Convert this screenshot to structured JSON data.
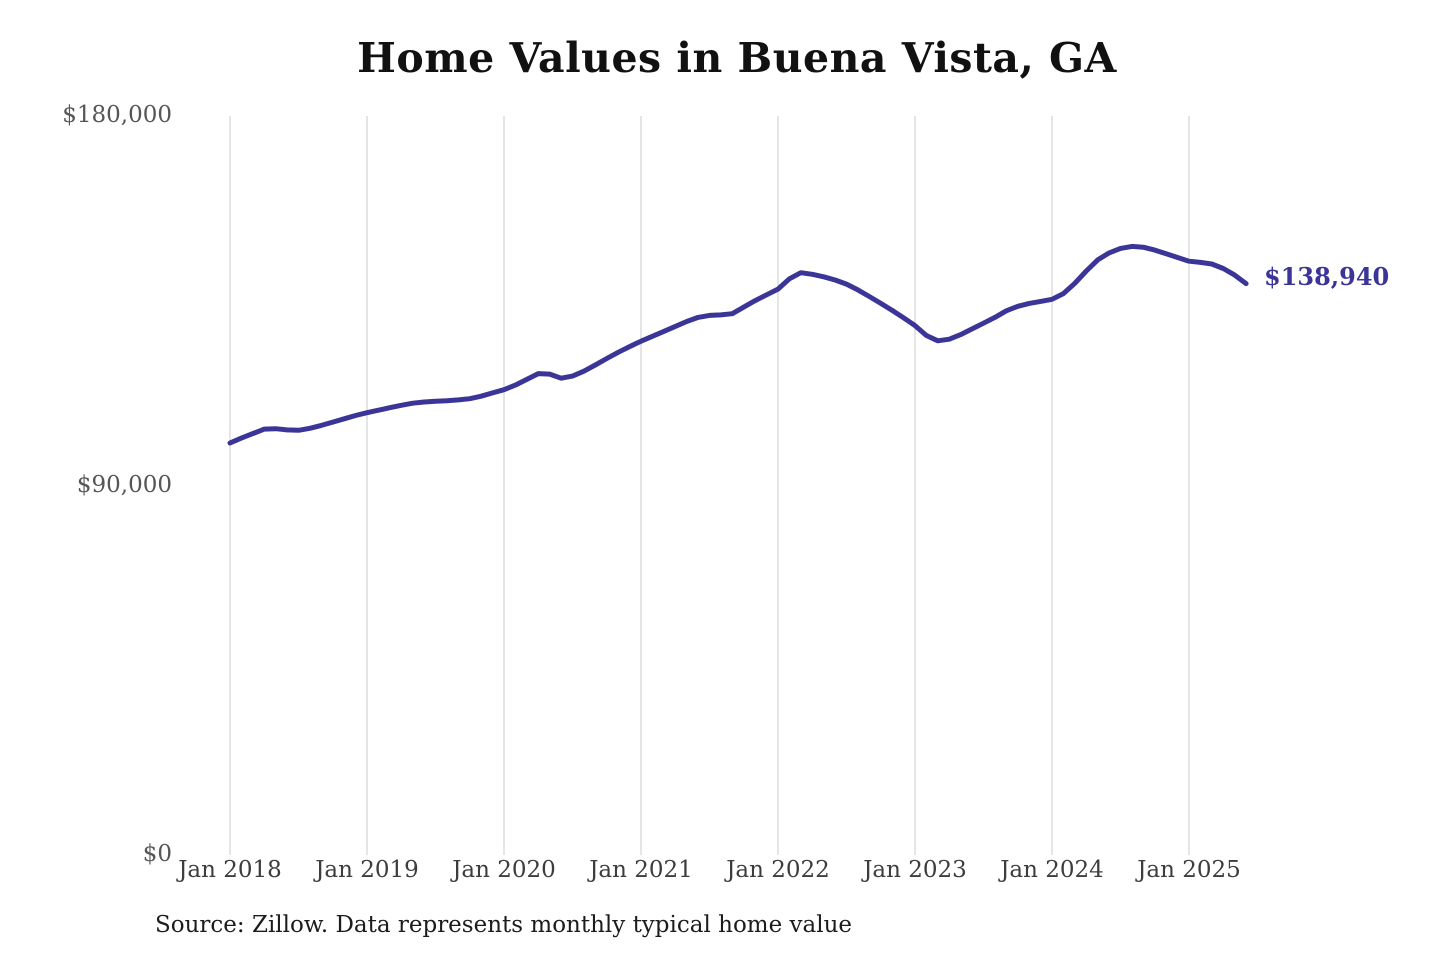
{
  "chart": {
    "line_color": "#3b3598",
    "grid_color": "#cbcbcb",
    "background": "#ffffff"
  },
  "chart_data": {
    "type": "line",
    "title": "Home Values in Buena Vista, GA",
    "xlabel": "",
    "ylabel": "",
    "ylim": [
      0,
      180000
    ],
    "grid": {
      "vertical": true,
      "horizontal": false
    },
    "legend": "none",
    "annotation": {
      "text": "$138,940",
      "value": 138940,
      "position": "line-end"
    },
    "source": "Source: Zillow. Data represents monthly typical home value",
    "yticks": [
      {
        "value": 0,
        "label": "$0"
      },
      {
        "value": 90000,
        "label": "$90,000"
      },
      {
        "value": 180000,
        "label": "$180,000"
      }
    ],
    "xticks": [
      {
        "month_index": 0,
        "label": "Jan 2018"
      },
      {
        "month_index": 12,
        "label": "Jan 2019"
      },
      {
        "month_index": 24,
        "label": "Jan 2020"
      },
      {
        "month_index": 36,
        "label": "Jan 2021"
      },
      {
        "month_index": 48,
        "label": "Jan 2022"
      },
      {
        "month_index": 60,
        "label": "Jan 2023"
      },
      {
        "month_index": 72,
        "label": "Jan 2024"
      },
      {
        "month_index": 84,
        "label": "Jan 2025"
      }
    ],
    "series": [
      {
        "name": "Monthly typical home value",
        "frequency": "monthly",
        "months": [
          "2018-01",
          "2018-02",
          "2018-03",
          "2018-04",
          "2018-05",
          "2018-06",
          "2018-07",
          "2018-08",
          "2018-09",
          "2018-10",
          "2018-11",
          "2018-12",
          "2019-01",
          "2019-02",
          "2019-03",
          "2019-04",
          "2019-05",
          "2019-06",
          "2019-07",
          "2019-08",
          "2019-09",
          "2019-10",
          "2019-11",
          "2019-12",
          "2020-01",
          "2020-02",
          "2020-03",
          "2020-04",
          "2020-05",
          "2020-06",
          "2020-07",
          "2020-08",
          "2020-09",
          "2020-10",
          "2020-11",
          "2020-12",
          "2021-01",
          "2021-02",
          "2021-03",
          "2021-04",
          "2021-05",
          "2021-06",
          "2021-07",
          "2021-08",
          "2021-09",
          "2021-10",
          "2021-11",
          "2021-12",
          "2022-01",
          "2022-02",
          "2022-03",
          "2022-04",
          "2022-05",
          "2022-06",
          "2022-07",
          "2022-08",
          "2022-09",
          "2022-10",
          "2022-11",
          "2022-12",
          "2023-01",
          "2023-02",
          "2023-03",
          "2023-04",
          "2023-05",
          "2023-06",
          "2023-07",
          "2023-08",
          "2023-09",
          "2023-10",
          "2023-11",
          "2023-12",
          "2024-01",
          "2024-02",
          "2024-03",
          "2024-04",
          "2024-05",
          "2024-06",
          "2024-07",
          "2024-08",
          "2024-09",
          "2024-10",
          "2024-11",
          "2024-12",
          "2025-01",
          "2025-02",
          "2025-03",
          "2025-04",
          "2025-05",
          "2025-06"
        ],
        "values": [
          100100,
          101300,
          102400,
          103500,
          103600,
          103300,
          103200,
          103700,
          104400,
          105200,
          106000,
          106800,
          107500,
          108100,
          108700,
          109300,
          109800,
          110100,
          110300,
          110400,
          110600,
          110900,
          111500,
          112300,
          113100,
          114200,
          115600,
          117000,
          116900,
          115900,
          116400,
          117600,
          119100,
          120700,
          122200,
          123600,
          124900,
          126100,
          127300,
          128500,
          129700,
          130700,
          131200,
          131300,
          131600,
          133200,
          134800,
          136200,
          137600,
          140100,
          141600,
          141200,
          140600,
          139800,
          138800,
          137400,
          135800,
          134100,
          132400,
          130600,
          128700,
          126300,
          125000,
          125400,
          126500,
          127900,
          129300,
          130700,
          132300,
          133400,
          134100,
          134600,
          135100,
          136500,
          139000,
          142000,
          144700,
          146400,
          147500,
          148000,
          147800,
          147100,
          146200,
          145300,
          144400,
          144100,
          143700,
          142600,
          141000,
          138940
        ]
      }
    ]
  }
}
